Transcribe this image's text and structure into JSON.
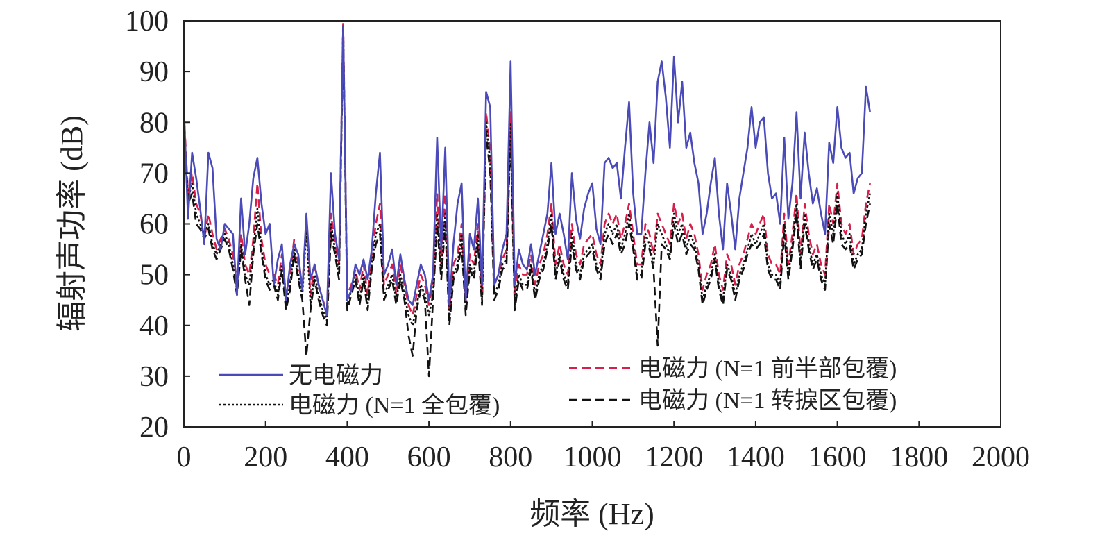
{
  "chart_data": {
    "type": "line",
    "xlabel": "频率 (Hz)",
    "ylabel": "辐射声功率 (dB)",
    "xlim": [
      0,
      2000
    ],
    "ylim": [
      20,
      100
    ],
    "x_ticks": [
      0,
      200,
      400,
      600,
      800,
      1000,
      1200,
      1400,
      1600,
      1800,
      2000
    ],
    "y_ticks": [
      20,
      30,
      40,
      50,
      60,
      70,
      80,
      90,
      100
    ],
    "grid": false,
    "legend_position": "bottom-center, two columns",
    "x_step": 10,
    "series": [
      {
        "name": "无电磁力",
        "color": "#4a4ab8",
        "style": "solid",
        "values": [
          83,
          61,
          74,
          69,
          63,
          56,
          74,
          71,
          57,
          55,
          60,
          59,
          58,
          46,
          65,
          54,
          60,
          69,
          73,
          64,
          58,
          60,
          48,
          53,
          56,
          45,
          52,
          56,
          54,
          47,
          62,
          49,
          52,
          48,
          45,
          42,
          70,
          58,
          53,
          99,
          45,
          47,
          52,
          50,
          53,
          49,
          55,
          66,
          74,
          50,
          52,
          55,
          48,
          54,
          49,
          45,
          44,
          48,
          52,
          50,
          45,
          50,
          77,
          55,
          75,
          44,
          56,
          64,
          68,
          45,
          58,
          55,
          65,
          48,
          86,
          83,
          48,
          50,
          55,
          58,
          92,
          48,
          55,
          52,
          51,
          56,
          50,
          54,
          58,
          62,
          72,
          58,
          62,
          58,
          53,
          70,
          61,
          57,
          63,
          66,
          68,
          59,
          56,
          72,
          73,
          71,
          72,
          65,
          75,
          84,
          66,
          58,
          58,
          70,
          80,
          72,
          88,
          92,
          85,
          75,
          93,
          80,
          88,
          75,
          78,
          72,
          68,
          58,
          62,
          68,
          73,
          62,
          55,
          68,
          62,
          55,
          65,
          70,
          75,
          83,
          75,
          80,
          81,
          70,
          65,
          66,
          60,
          77,
          61,
          68,
          82,
          65,
          78,
          70,
          64,
          67,
          62,
          58,
          76,
          72,
          83,
          75,
          73,
          74,
          66,
          69,
          70,
          87,
          82
        ]
      },
      {
        "name": "电磁力 (N=1 全包覆)",
        "color": "#111111",
        "style": "dotted",
        "values": [
          80,
          65,
          68,
          62,
          60,
          58,
          60,
          56,
          54,
          56,
          58,
          56,
          52,
          47,
          56,
          50,
          48,
          55,
          63,
          55,
          50,
          48,
          49,
          46,
          52,
          44,
          48,
          55,
          50,
          46,
          59,
          44,
          50,
          46,
          43,
          41,
          60,
          55,
          50,
          99,
          44,
          47,
          50,
          45,
          50,
          44,
          52,
          58,
          60,
          46,
          48,
          50,
          45,
          50,
          46,
          42,
          40,
          44,
          48,
          46,
          42,
          46,
          62,
          50,
          62,
          41,
          50,
          52,
          58,
          43,
          52,
          50,
          58,
          45,
          80,
          72,
          46,
          48,
          52,
          53,
          80,
          44,
          50,
          48,
          48,
          52,
          46,
          50,
          52,
          56,
          62,
          50,
          54,
          50,
          48,
          58,
          52,
          50,
          54,
          55,
          56,
          52,
          50,
          58,
          60,
          58,
          60,
          55,
          58,
          62,
          56,
          50,
          50,
          58,
          56,
          52,
          60,
          58,
          56,
          54,
          62,
          58,
          60,
          55,
          58,
          56,
          52,
          45,
          48,
          50,
          54,
          48,
          45,
          52,
          50,
          46,
          50,
          52,
          55,
          58,
          56,
          58,
          60,
          52,
          50,
          50,
          48,
          60,
          50,
          56,
          64,
          52,
          62,
          56,
          52,
          54,
          50,
          48,
          62,
          58,
          66,
          58,
          56,
          58,
          52,
          54,
          55,
          62,
          66
        ]
      },
      {
        "name": "电磁力 (N=1 前半部包覆)",
        "color": "#d81e4a",
        "style": "dashed",
        "values": [
          82,
          66,
          70,
          64,
          62,
          57,
          62,
          58,
          55,
          57,
          59,
          57,
          54,
          49,
          58,
          52,
          50,
          57,
          68,
          57,
          52,
          50,
          50,
          48,
          54,
          46,
          50,
          57,
          52,
          48,
          60,
          46,
          52,
          48,
          45,
          43,
          62,
          56,
          52,
          100,
          46,
          48,
          51,
          47,
          52,
          46,
          54,
          60,
          64,
          48,
          50,
          52,
          46,
          52,
          48,
          44,
          42,
          46,
          50,
          48,
          44,
          48,
          66,
          52,
          66,
          43,
          52,
          54,
          60,
          45,
          54,
          52,
          60,
          46,
          82,
          74,
          48,
          50,
          53,
          55,
          82,
          46,
          52,
          50,
          50,
          54,
          48,
          52,
          54,
          58,
          64,
          52,
          56,
          52,
          50,
          60,
          54,
          52,
          56,
          57,
          58,
          54,
          52,
          60,
          62,
          60,
          62,
          57,
          60,
          64,
          58,
          52,
          52,
          60,
          58,
          54,
          62,
          60,
          58,
          56,
          64,
          60,
          62,
          57,
          60,
          58,
          54,
          47,
          50,
          52,
          56,
          50,
          47,
          54,
          52,
          48,
          52,
          54,
          57,
          60,
          58,
          60,
          62,
          54,
          52,
          52,
          50,
          62,
          52,
          58,
          66,
          54,
          64,
          58,
          54,
          56,
          52,
          50,
          64,
          60,
          68,
          60,
          58,
          60,
          54,
          56,
          57,
          64,
          68
        ]
      },
      {
        "name": "电磁力 (N=1 转捩区包覆)",
        "color": "#111111",
        "style": "dashed",
        "values": [
          79,
          64,
          66,
          60,
          59,
          57,
          59,
          55,
          53,
          55,
          57,
          55,
          51,
          46,
          55,
          49,
          44,
          54,
          60,
          54,
          49,
          47,
          48,
          45,
          51,
          43,
          47,
          54,
          49,
          45,
          34,
          43,
          49,
          45,
          42,
          40,
          58,
          54,
          49,
          98,
          43,
          46,
          49,
          44,
          49,
          43,
          51,
          56,
          58,
          45,
          47,
          49,
          44,
          49,
          45,
          38,
          34,
          43,
          47,
          45,
          30,
          45,
          60,
          49,
          60,
          40,
          49,
          51,
          56,
          42,
          51,
          49,
          56,
          44,
          78,
          70,
          45,
          47,
          51,
          52,
          78,
          43,
          49,
          47,
          47,
          51,
          45,
          49,
          51,
          55,
          60,
          49,
          53,
          49,
          47,
          56,
          51,
          49,
          53,
          54,
          55,
          51,
          49,
          56,
          58,
          56,
          58,
          54,
          56,
          60,
          55,
          49,
          49,
          56,
          55,
          51,
          36,
          56,
          55,
          53,
          60,
          56,
          58,
          54,
          56,
          55,
          51,
          44,
          47,
          49,
          53,
          47,
          44,
          51,
          49,
          45,
          49,
          51,
          54,
          56,
          55,
          56,
          58,
          51,
          49,
          49,
          47,
          58,
          49,
          55,
          62,
          51,
          60,
          55,
          51,
          53,
          49,
          47,
          60,
          56,
          64,
          56,
          55,
          56,
          51,
          53,
          54,
          60,
          64
        ]
      }
    ]
  }
}
